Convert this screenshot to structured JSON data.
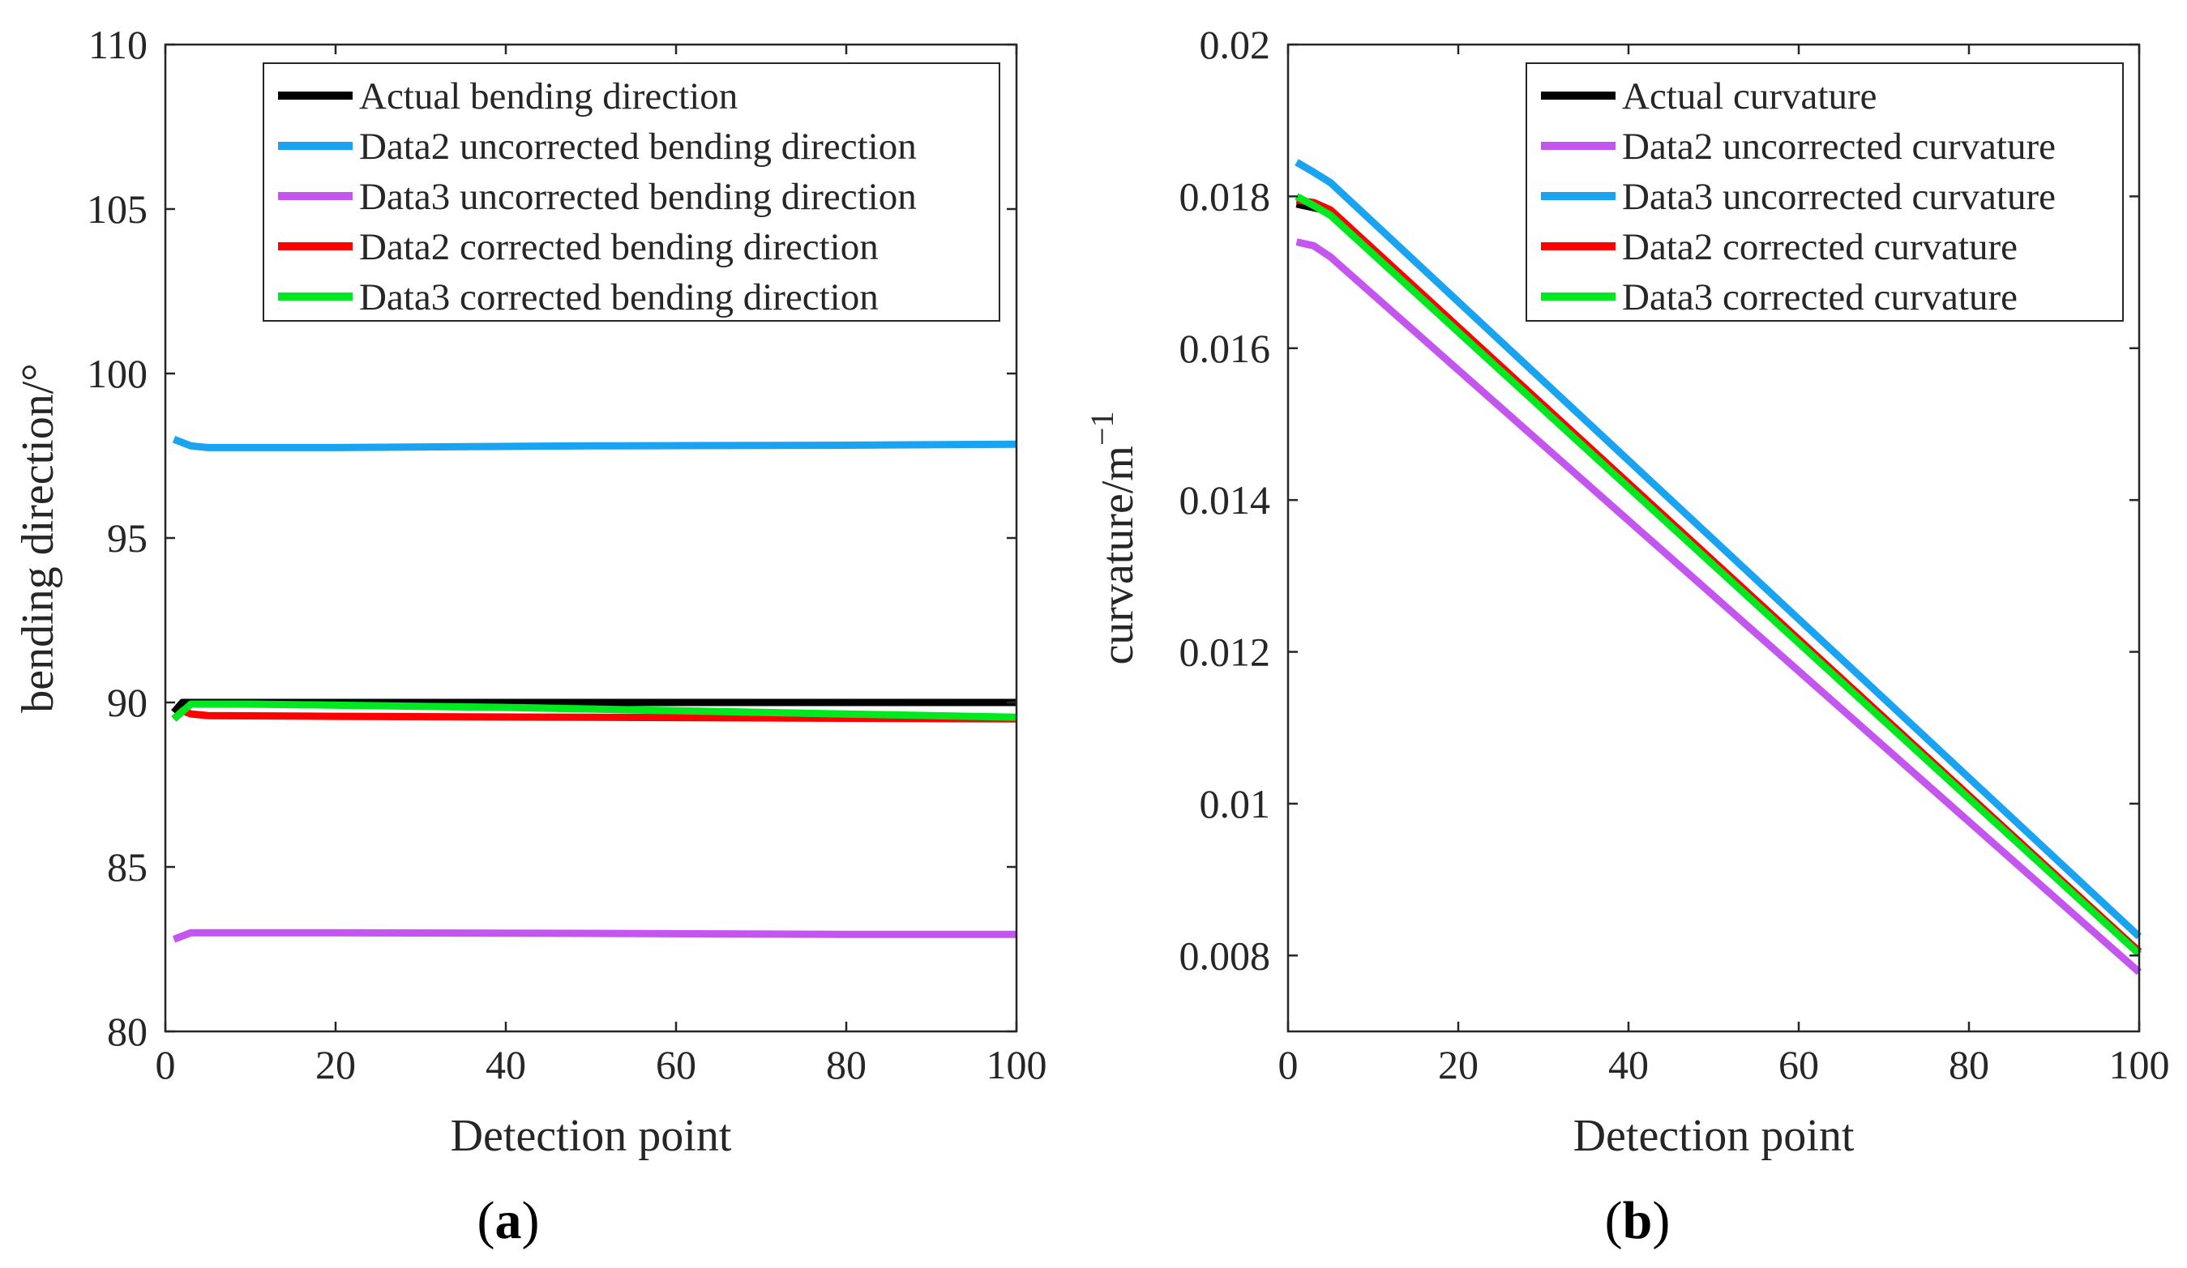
{
  "chart_data": [
    {
      "id": "a",
      "type": "line",
      "panel_label": "(a)",
      "title": "",
      "xlabel": "Detection point",
      "ylabel": "bending direction/°",
      "xlim": [
        0,
        100
      ],
      "ylim": [
        80,
        110
      ],
      "xticks": [
        0,
        20,
        40,
        60,
        80,
        100
      ],
      "yticks": [
        80,
        85,
        90,
        95,
        100,
        105,
        110
      ],
      "ytick_labels": [
        "80",
        "85",
        "90",
        "95",
        "100",
        "105",
        "110"
      ],
      "legend_position": "top-right",
      "grid": false,
      "series": [
        {
          "name": "Actual bending direction",
          "color": "#000000",
          "x": [
            1,
            2,
            100
          ],
          "y": [
            89.7,
            90.0,
            90.0
          ]
        },
        {
          "name": "Data2 uncorrected bending direction",
          "color": "#1aa3f0",
          "x": [
            1,
            3,
            5,
            20,
            50,
            80,
            100
          ],
          "y": [
            98.0,
            97.8,
            97.75,
            97.75,
            97.8,
            97.82,
            97.85
          ]
        },
        {
          "name": "Data3 uncorrected bending direction",
          "color": "#c455ee",
          "x": [
            1,
            3,
            5,
            20,
            50,
            80,
            100
          ],
          "y": [
            82.8,
            83.0,
            83.0,
            83.0,
            82.98,
            82.95,
            82.95
          ]
        },
        {
          "name": "Data2 corrected bending direction",
          "color": "#ff0000",
          "x": [
            1,
            2,
            3,
            5,
            20,
            50,
            80,
            100
          ],
          "y": [
            89.5,
            89.75,
            89.65,
            89.6,
            89.58,
            89.55,
            89.52,
            89.5
          ]
        },
        {
          "name": "Data3 corrected bending direction",
          "color": "#00e81f",
          "x": [
            1,
            3,
            10,
            40,
            70,
            100
          ],
          "y": [
            89.5,
            89.95,
            89.95,
            89.85,
            89.7,
            89.55
          ]
        }
      ]
    },
    {
      "id": "b",
      "type": "line",
      "panel_label": "(b)",
      "title": "",
      "xlabel": "Detection point",
      "ylabel": "curvature/m",
      "ylabel_superscript": "−1",
      "xlim": [
        0,
        100
      ],
      "ylim": [
        0.007,
        0.02
      ],
      "xticks": [
        0,
        20,
        40,
        60,
        80,
        100
      ],
      "yticks": [
        0.008,
        0.01,
        0.012,
        0.014,
        0.016,
        0.018,
        0.02
      ],
      "ytick_labels": [
        "0.008",
        "0.01",
        "0.012",
        "0.014",
        "0.016",
        "0.018",
        "0.02"
      ],
      "legend_position": "top-right",
      "grid": false,
      "series": [
        {
          "name": "Actual curvature",
          "color": "#000000",
          "x": [
            1,
            3,
            5,
            100
          ],
          "y": [
            0.0179,
            0.01785,
            0.0178,
            0.00805
          ]
        },
        {
          "name": "Data2 uncorrected curvature",
          "color": "#c455ee",
          "x": [
            1,
            3,
            5,
            100
          ],
          "y": [
            0.0174,
            0.01735,
            0.0172,
            0.00778
          ]
        },
        {
          "name": "Data3 uncorrected curvature",
          "color": "#1aa3f0",
          "x": [
            1,
            3,
            5,
            100
          ],
          "y": [
            0.01845,
            0.01832,
            0.01818,
            0.00825
          ]
        },
        {
          "name": "Data2 corrected curvature",
          "color": "#ff0000",
          "x": [
            1,
            3,
            5,
            100
          ],
          "y": [
            0.01795,
            0.01792,
            0.01782,
            0.00805
          ]
        },
        {
          "name": "Data3 corrected curvature",
          "color": "#00e81f",
          "x": [
            1,
            3,
            5,
            100
          ],
          "y": [
            0.018,
            0.01788,
            0.01775,
            0.00802
          ]
        }
      ]
    }
  ]
}
